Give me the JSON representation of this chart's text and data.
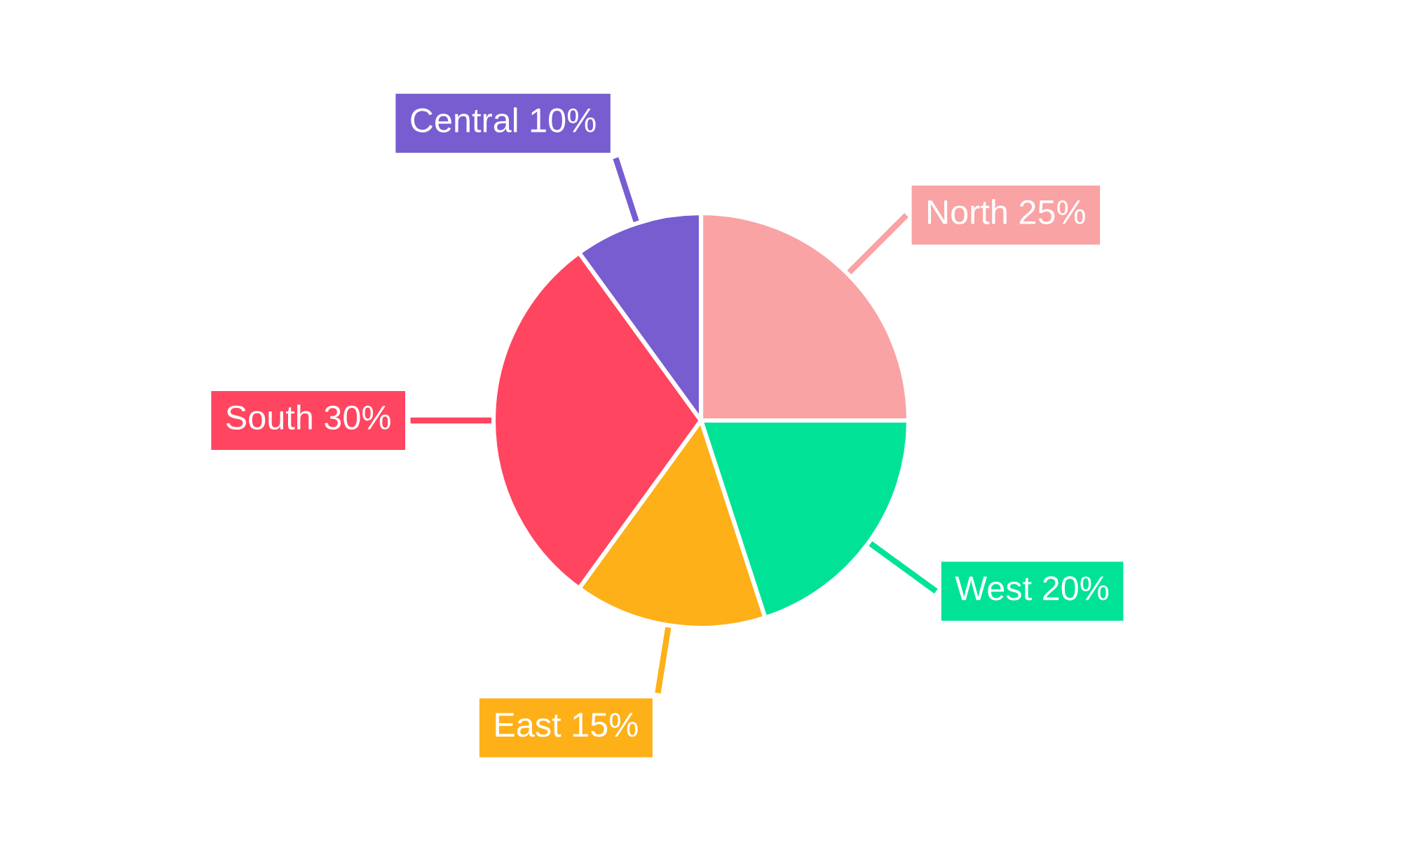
{
  "chart_data": {
    "type": "pie",
    "categories": [
      "North",
      "West",
      "East",
      "South",
      "Central"
    ],
    "values": [
      25,
      20,
      15,
      30,
      10
    ],
    "colors": [
      "#f9a3a4",
      "#00e396",
      "#feb019",
      "#ff4560",
      "#775dd0"
    ],
    "value_labels": [
      "25%",
      "20%",
      "15%",
      "30%",
      "10%"
    ]
  }
}
